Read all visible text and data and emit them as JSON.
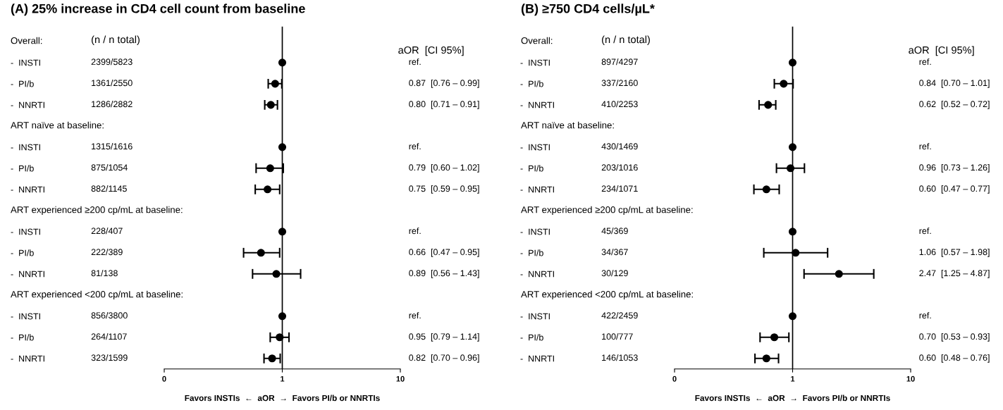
{
  "chart_data": [
    {
      "type": "scatter",
      "orientation": "horizontal",
      "log": "x",
      "title": "(A) 25% increase in CD4 cell count from baseline",
      "xlabel": "Favors INSTIs  ←  aOR  →  Favors PI/b or NNRTIs",
      "annotations": [
        "(n / n total)",
        "aOR  [CI 95%]",
        "Overall:",
        "ART naïve at baseline:",
        "ART experienced ≥200 cp/mL at baseline:",
        "ART experienced <200 cp/mL at baseline:",
        "ref.",
        "0.87  [0.76 – 0.99]",
        "0.80  [0.71 – 0.91]",
        "ref.",
        "0.79  [0.60 – 1.02]",
        "0.75  [0.59 – 0.95]",
        "ref.",
        "0.66  [0.47 – 0.95]",
        "0.89  [0.56 – 1.43]",
        "ref.",
        "0.95  [0.79 – 1.14]",
        "0.82  [0.70 – 0.96]"
      ],
      "categories": [
        null,
        "-  INSTI",
        "-  PI/b",
        "-  NNRTI",
        null,
        "-  INSTI",
        "-  PI/b",
        "-  NNRTI",
        null,
        "-  INSTI",
        "-  PI/b",
        "-  NNRTI",
        null,
        "-  INSTI",
        "-  PI/b",
        "-  NNRTI"
      ],
      "y2_categories": [
        null,
        "2399/5823",
        "1361/2550",
        "1286/2882",
        null,
        "1315/1616",
        "875/1054",
        "882/1145",
        null,
        "228/407",
        "222/389",
        "81/138",
        null,
        "856/3800",
        "264/1107",
        "323/1599"
      ],
      "values": [
        null,
        1,
        0.87,
        0.8,
        null,
        1,
        0.79,
        0.75,
        null,
        1,
        0.66,
        0.89,
        null,
        1,
        0.95,
        0.82
      ],
      "errors": [
        null,
        null,
        [
          0.76,
          0.99
        ],
        [
          0.71,
          0.91
        ],
        null,
        null,
        [
          0.6,
          1.02
        ],
        [
          0.59,
          0.95
        ],
        null,
        null,
        [
          0.47,
          0.95
        ],
        [
          0.56,
          1.43
        ],
        null,
        null,
        [
          0.79,
          1.14
        ],
        [
          0.7,
          0.96
        ]
      ],
      "color": "#000000",
      "marker": "circle",
      "xlim": [
        0.1,
        10
      ],
      "xticks": [
        {
          "value": 0.1,
          "label": "0"
        },
        1,
        10
      ],
      "ref_lines": [
        {
          "axis": "x",
          "value": 1,
          "color": "#000000"
        }
      ],
      "tick_labels": "x",
      "grid": false,
      "legend": false
    },
    {
      "type": "scatter",
      "orientation": "horizontal",
      "log": "x",
      "title": "(B) ≥750 CD4 cells/µL*",
      "xlabel": "Favors INSTIs  ←  aOR  →  Favors PI/b or NNRTIs",
      "annotations": [
        "(n / n total)",
        "aOR  [CI 95%]",
        "Overall:",
        "ART naïve at baseline:",
        "ART experienced ≥200 cp/mL at baseline:",
        "ART experienced <200 cp/mL at baseline:",
        "ref.",
        "0.84  [0.70 – 1.01]",
        "0.62  [0.52 – 0.72]",
        "ref.",
        "0.96  [0.73 – 1.26]",
        "0.60  [0.47 – 0.77]",
        "ref.",
        "1.06  [0.57 – 1.98]",
        "2.47  [1.25 – 4.87]",
        "ref.",
        "0.70  [0.53 – 0.93]",
        "0.60  [0.48 – 0.76]"
      ],
      "categories": [
        null,
        "-  INSTI",
        "-  PI/b",
        "-  NNRTI",
        null,
        "-  INSTI",
        "-  PI/b",
        "-  NNRTI",
        null,
        "-  INSTI",
        "-  PI/b",
        "-  NNRTI",
        null,
        "-  INSTI",
        "-  PI/b",
        "-  NNRTI"
      ],
      "y2_categories": [
        null,
        "897/4297",
        "337/2160",
        "410/2253",
        null,
        "430/1469",
        "203/1016",
        "234/1071",
        null,
        "45/369",
        "34/367",
        "30/129",
        null,
        "422/2459",
        "100/777",
        "146/1053"
      ],
      "values": [
        null,
        1,
        0.84,
        0.62,
        null,
        1,
        0.96,
        0.6,
        null,
        1,
        1.06,
        2.47,
        null,
        1,
        0.7,
        0.6
      ],
      "errors": [
        null,
        null,
        [
          0.7,
          1.01
        ],
        [
          0.52,
          0.72
        ],
        null,
        null,
        [
          0.73,
          1.26
        ],
        [
          0.47,
          0.77
        ],
        null,
        null,
        [
          0.57,
          1.98
        ],
        [
          1.25,
          4.87
        ],
        null,
        null,
        [
          0.53,
          0.93
        ],
        [
          0.48,
          0.76
        ]
      ],
      "color": "#000000",
      "marker": "circle",
      "xlim": [
        0.1,
        10
      ],
      "xticks": [
        {
          "value": 0.1,
          "label": "0"
        },
        1,
        10
      ],
      "ref_lines": [
        {
          "axis": "x",
          "value": 1,
          "color": "#000000"
        }
      ],
      "tick_labels": "x",
      "grid": false,
      "legend": false
    }
  ]
}
